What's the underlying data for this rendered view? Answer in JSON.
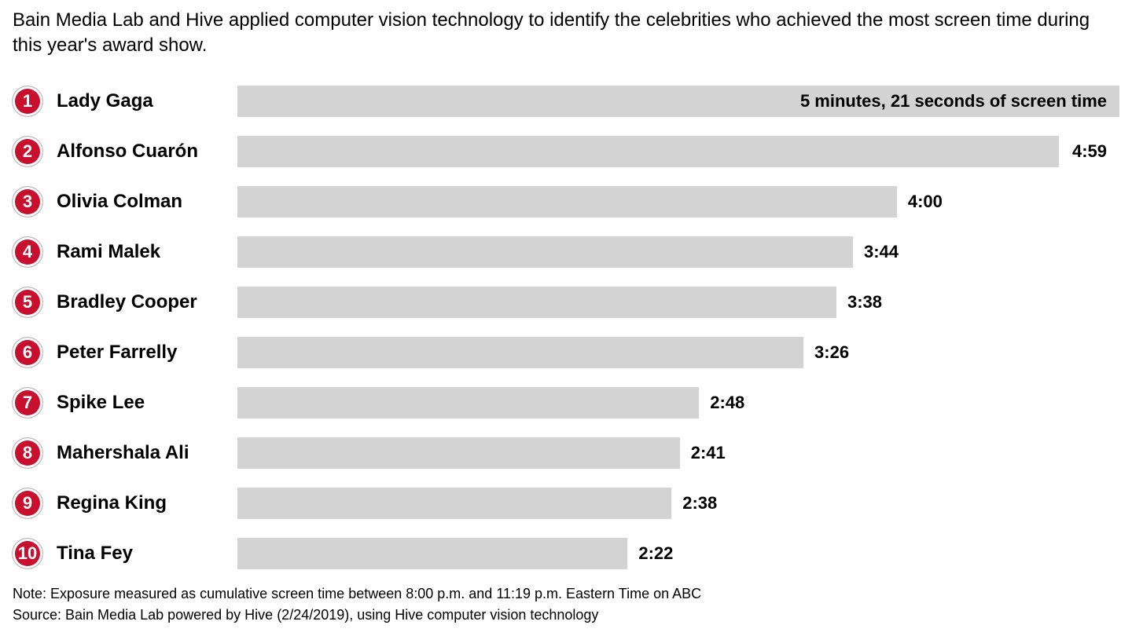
{
  "headline": "Bain Media Lab and Hive applied computer vision technology to identify the celebrities who achieved the most screen time during this year's award show.",
  "chart": {
    "type": "bar",
    "bar_color": "#d3d3d3",
    "badge_bg": "#c8102e",
    "badge_text_color": "#ffffff",
    "label_fontsize": 22,
    "name_fontsize": 24,
    "max_seconds": 321,
    "rows": [
      {
        "rank": "1",
        "name": "Lady Gaga",
        "seconds": 321,
        "label": "5 minutes, 21 seconds of screen time",
        "label_pos": "inside"
      },
      {
        "rank": "2",
        "name": "Alfonso Cuarón",
        "seconds": 299,
        "label": "4:59",
        "label_pos": "inside"
      },
      {
        "rank": "3",
        "name": "Olivia Colman",
        "seconds": 240,
        "label": "4:00",
        "label_pos": "outside"
      },
      {
        "rank": "4",
        "name": "Rami Malek",
        "seconds": 224,
        "label": "3:44",
        "label_pos": "outside"
      },
      {
        "rank": "5",
        "name": "Bradley Cooper",
        "seconds": 218,
        "label": "3:38",
        "label_pos": "outside"
      },
      {
        "rank": "6",
        "name": "Peter Farrelly",
        "seconds": 206,
        "label": "3:26",
        "label_pos": "outside"
      },
      {
        "rank": "7",
        "name": "Spike Lee",
        "seconds": 168,
        "label": "2:48",
        "label_pos": "outside"
      },
      {
        "rank": "8",
        "name": "Mahershala Ali",
        "seconds": 161,
        "label": "2:41",
        "label_pos": "outside"
      },
      {
        "rank": "9",
        "name": "Regina King",
        "seconds": 158,
        "label": "2:38",
        "label_pos": "outside"
      },
      {
        "rank": "10",
        "name": "Tina Fey",
        "seconds": 142,
        "label": "2:22",
        "label_pos": "outside"
      }
    ]
  },
  "footer": {
    "note": "Note: Exposure measured as cumulative screen time between 8:00 p.m. and 11:19 p.m. Eastern Time on ABC",
    "source": "Source: Bain Media Lab powered by Hive (2/24/2019), using Hive computer vision technology"
  }
}
